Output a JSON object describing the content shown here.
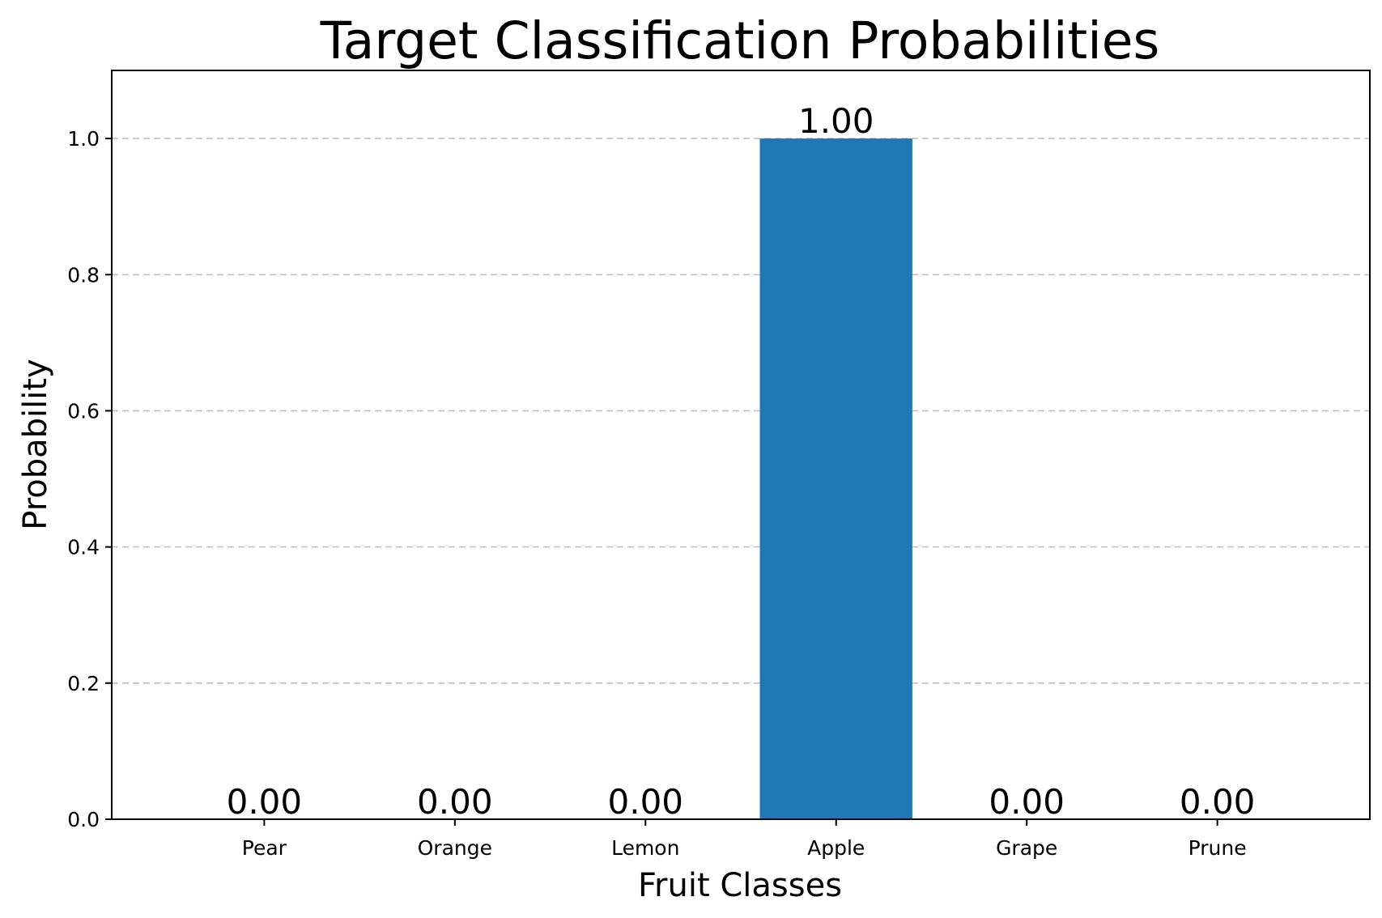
{
  "chart_data": {
    "type": "bar",
    "title": "Target Classification Probabilities",
    "xlabel": "Fruit Classes",
    "ylabel": "Probability",
    "categories": [
      "Pear",
      "Orange",
      "Lemon",
      "Apple",
      "Grape",
      "Prune"
    ],
    "values": [
      0.0,
      0.0,
      0.0,
      1.0,
      0.0,
      0.0
    ],
    "data_labels": [
      "0.00",
      "0.00",
      "0.00",
      "1.00",
      "0.00",
      "0.00"
    ],
    "ylim": [
      0,
      1.1
    ],
    "yticks": [
      0.0,
      0.2,
      0.4,
      0.6,
      0.8,
      1.0
    ],
    "ytick_labels": [
      "0.0",
      "0.2",
      "0.4",
      "0.6",
      "0.8",
      "1.0"
    ],
    "grid": "y-dashed",
    "bar_color": "#1f77b4",
    "legend": "none"
  }
}
